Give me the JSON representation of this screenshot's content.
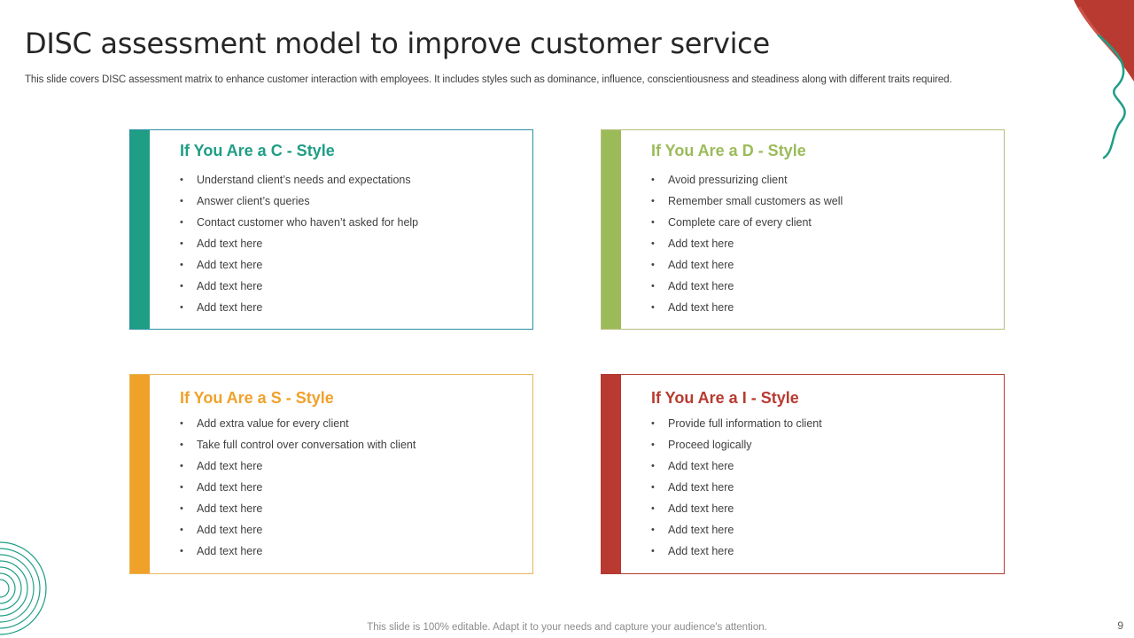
{
  "slide": {
    "title": "DISC assessment model to improve customer service",
    "subtitle": "This slide covers DISC assessment matrix to enhance customer interaction with employees. It includes styles such as dominance, influence, conscientiousness and steadiness along with different traits required.",
    "footer": "This slide is 100% editable. Adapt it to your needs and capture your audience's attention.",
    "page_number": "9"
  },
  "colors": {
    "teal": "#1f9e85",
    "green": "#9bbb59",
    "orange": "#f0a12a",
    "red": "#b83a30"
  },
  "cards": [
    {
      "id": "c",
      "heading": "If You Are a C - Style",
      "items": [
        "Understand client’s needs and expectations",
        "Answer client’s queries",
        "Contact customer who haven’t  asked for help",
        "Add text here",
        "Add text here",
        "Add text here",
        "Add text here"
      ]
    },
    {
      "id": "d",
      "heading": "If You Are a D - Style",
      "items": [
        "Avoid  pressurizing client",
        "Remember  small customers as well",
        "Complete  care of  every  client",
        "Add text here",
        "Add text here",
        "Add text here",
        "Add text here"
      ]
    },
    {
      "id": "s",
      "heading": "If You Are a S - Style",
      "items": [
        "Add extra value  for every  client",
        "Take full control over  conversation  with client",
        "Add text here",
        "Add text here",
        "Add text here",
        "Add text here",
        "Add text here"
      ]
    },
    {
      "id": "i",
      "heading": "If You Are a I - Style",
      "items": [
        "Provide  full information  to client",
        "Proceed logically",
        "Add text here",
        "Add text here",
        "Add text here",
        "Add text here",
        "Add text here"
      ]
    }
  ]
}
